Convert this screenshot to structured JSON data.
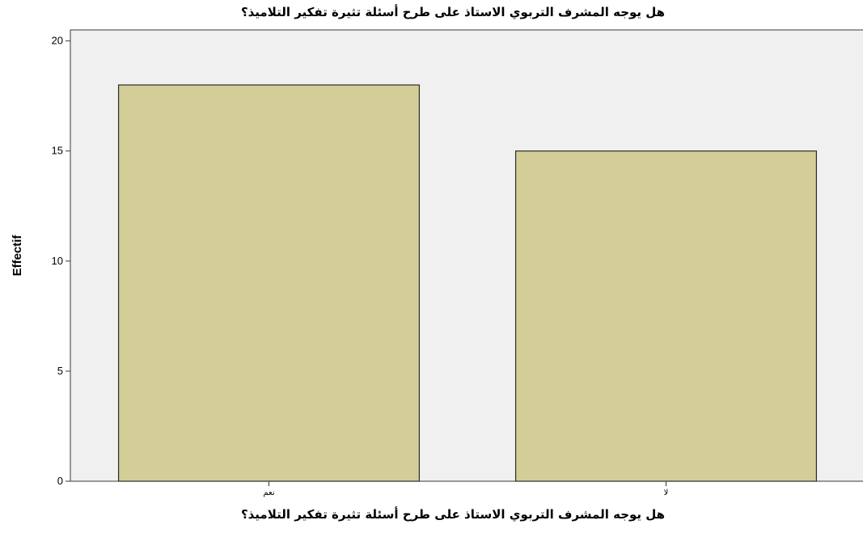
{
  "chart_data": {
    "type": "bar",
    "title": "هل يوجه المشرف التربوي الاستاذ على طرح أسئلة تثيرة تفكير التلاميذ؟",
    "xlabel": "هل يوجه المشرف التربوي الاستاذ على طرح أسئلة تثيرة تفكير التلاميذ؟",
    "ylabel": "Effectif",
    "categories": [
      "نعم",
      "لا"
    ],
    "values": [
      18,
      15
    ],
    "ylim": [
      0,
      20.5
    ],
    "yticks": [
      0,
      5,
      10,
      15,
      20
    ],
    "grid": false,
    "legend": "none",
    "colors": {
      "bar_fill": "#d3ce97",
      "bar_stroke": "#2b2b2b",
      "plot_background": "#f0f0f0",
      "frame": "#3a3a3a",
      "page_background": "#ffffff"
    }
  }
}
